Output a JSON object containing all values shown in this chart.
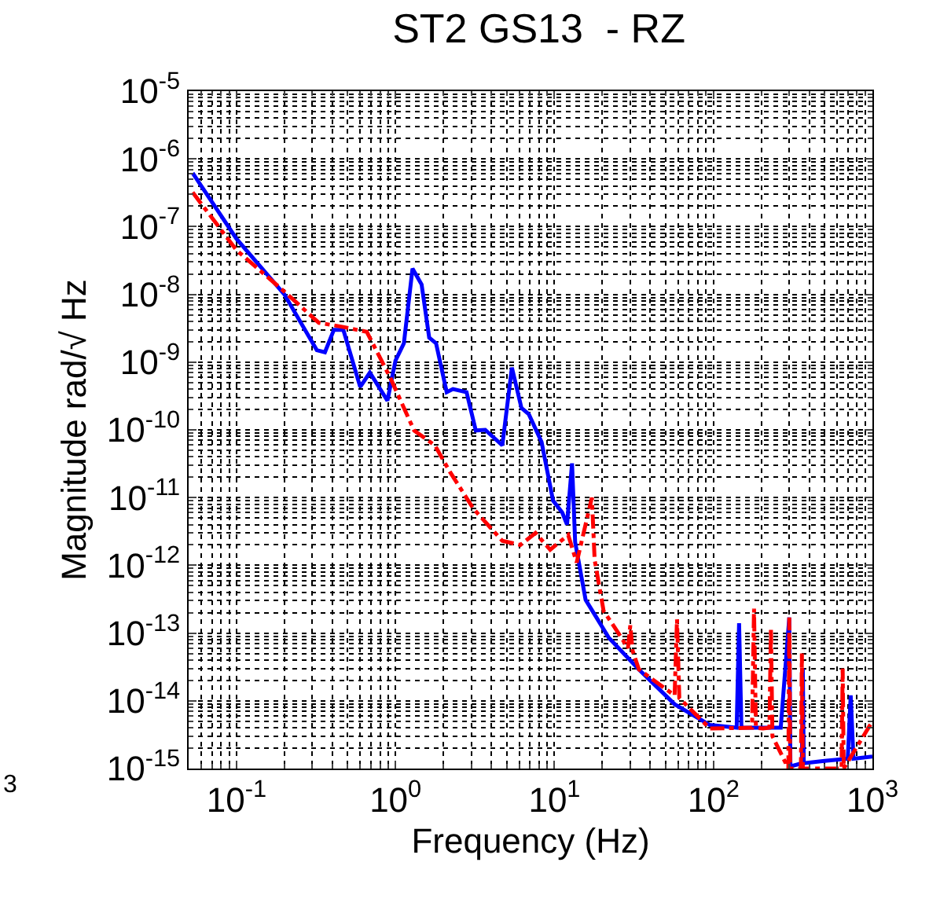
{
  "chart_data": {
    "type": "line",
    "title": "ST2 GS13  - RZ",
    "xlabel": "Frequency (Hz)",
    "ylabel": "Magnitude rad/√ Hz",
    "log": "xy",
    "grid": true,
    "marker": "none",
    "xlim": [
      0.05,
      1000
    ],
    "ylim": [
      1e-15,
      1e-05
    ],
    "xticks": [
      {
        "value": 0.1,
        "label": "10$^{-1}$"
      },
      {
        "value": 1,
        "label": "10$^{0}$"
      },
      {
        "value": 10,
        "label": "10$^{1}$"
      },
      {
        "value": 100,
        "label": "10$^{2}$"
      },
      {
        "value": 1000,
        "label": "10$^{3}$"
      }
    ],
    "yticks": [
      {
        "value": 1e-15,
        "label": "10$^{-15}$"
      },
      {
        "value": 1e-14,
        "label": "10$^{-14}$"
      },
      {
        "value": 1e-13,
        "label": "10$^{-13}$"
      },
      {
        "value": 1e-12,
        "label": "10$^{-12}$"
      },
      {
        "value": 1e-11,
        "label": "10$^{-11}$"
      },
      {
        "value": 1e-10,
        "label": "10$^{-10}$"
      },
      {
        "value": 1e-09,
        "label": "10$^{-9}$"
      },
      {
        "value": 1e-08,
        "label": "10$^{-8}$"
      },
      {
        "value": 1e-07,
        "label": "10$^{-7}$"
      },
      {
        "value": 1e-06,
        "label": "10$^{-6}$"
      },
      {
        "value": 1e-05,
        "label": "10$^{-5}$"
      }
    ],
    "annotations": [
      "3"
    ],
    "series": [
      {
        "color": "#0000ff",
        "line_style": "solid",
        "x": [
          0.053,
          0.1,
          0.2,
          0.32,
          0.36,
          0.41,
          0.47,
          0.6,
          0.69,
          0.89,
          1.0,
          1.13,
          1.28,
          1.46,
          1.63,
          1.8,
          2.1,
          2.3,
          2.8,
          3.2,
          3.67,
          4.7,
          5.4,
          6.2,
          6.9,
          8.3,
          9.8,
          11.2,
          12,
          12.9,
          13.5,
          15.7,
          22,
          34,
          57,
          95,
          140,
          145,
          150,
          265,
          300,
          305,
          316,
          360,
          365,
          370,
          500,
          700,
          730,
          760,
          1000
        ],
        "values": [
          6.2e-07,
          6.6e-08,
          1e-08,
          1.5e-09,
          1.4e-09,
          3e-09,
          3e-09,
          4.3e-10,
          7e-10,
          2.7e-10,
          1.05e-09,
          1.9e-09,
          2.4e-08,
          1.4e-08,
          2.3e-09,
          1.9e-09,
          3.6e-10,
          4e-10,
          3.6e-10,
          9.8e-11,
          1e-10,
          5.9e-11,
          8.3e-10,
          2.1e-10,
          1.7e-10,
          6.6e-11,
          9e-12,
          6e-12,
          4e-12,
          3.2e-11,
          2.2e-12,
          3.1e-13,
          8.5e-14,
          2.9e-14,
          8.9e-15,
          4.4e-15,
          4e-15,
          1.4e-13,
          4e-15,
          4e-15,
          1.7e-13,
          1.1e-15,
          1.1e-15,
          1.2e-15,
          3e-14,
          1.2e-15,
          1.3e-15,
          1.4e-15,
          1.2e-14,
          1.4e-15,
          1.5e-15
        ]
      },
      {
        "color": "#ff0000",
        "line_style": "dashed",
        "x": [
          0.053,
          0.1,
          0.2,
          0.33,
          0.47,
          0.66,
          0.93,
          1.31,
          1.77,
          2.2,
          3.1,
          4.7,
          6.1,
          7.6,
          9.4,
          12.2,
          13.8,
          17.2,
          17.9,
          20.4,
          24,
          29,
          30,
          31,
          34,
          57,
          59,
          61,
          95,
          175,
          180,
          185,
          205,
          225,
          230,
          235,
          296,
          300,
          304,
          316,
          355,
          360,
          365,
          500,
          640,
          650,
          660,
          1000
        ],
        "values": [
          3.2e-07,
          4.5e-08,
          1.1e-08,
          3.8e-09,
          3.3e-09,
          2.8e-09,
          5.8e-10,
          9.8e-11,
          5.9e-11,
          2.4e-11,
          6.8e-12,
          2.3e-12,
          2e-12,
          3e-12,
          1.7e-12,
          2.8e-12,
          1.1e-12,
          1e-11,
          1.2e-12,
          2.1e-13,
          1.2e-13,
          6e-14,
          1.3e-13,
          5.5e-14,
          2.9e-14,
          1.2e-14,
          1.6e-13,
          1.1e-14,
          3.9e-15,
          4e-15,
          2.3e-13,
          4e-15,
          3.9e-15,
          4e-15,
          1.2e-13,
          3e-15,
          1e-15,
          1.7e-13,
          1e-15,
          1e-15,
          1e-15,
          5e-14,
          1e-15,
          1e-15,
          1e-15,
          3e-14,
          1e-15,
          5e-15
        ]
      }
    ]
  }
}
